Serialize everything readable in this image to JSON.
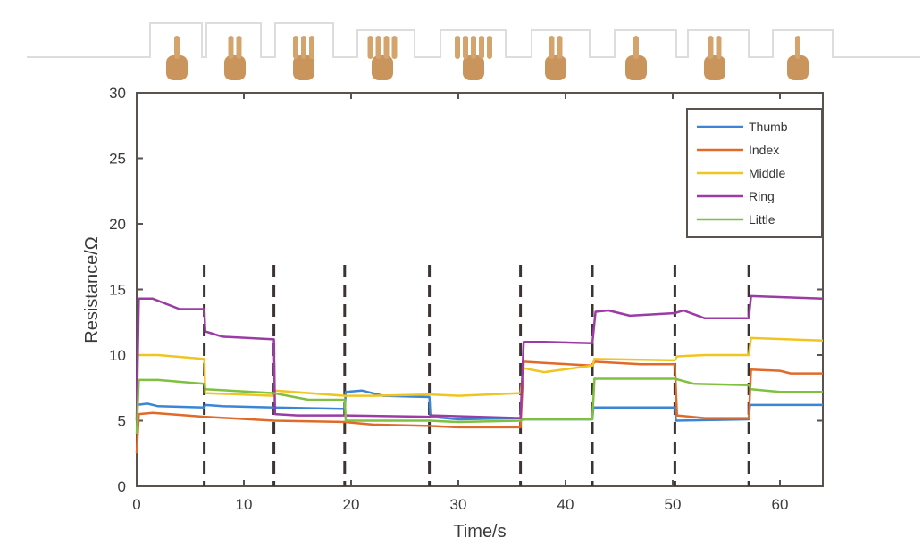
{
  "chart_data": {
    "type": "line",
    "title": "",
    "xlabel": "Time/s",
    "ylabel": "Resistance/Ω",
    "xlim": [
      0,
      64
    ],
    "ylim": [
      0,
      30
    ],
    "xticks": [
      0,
      10,
      20,
      30,
      40,
      50,
      60
    ],
    "yticks": [
      0,
      5,
      10,
      15,
      20,
      25,
      30
    ],
    "grid": false,
    "legend_position": "upper right",
    "gesture_boundaries": [
      6.3,
      12.8,
      19.4,
      27.3,
      35.8,
      42.5,
      50.2,
      57.1
    ],
    "gestures": [
      "one",
      "two",
      "three",
      "four",
      "five",
      "six (shaka)",
      "seven",
      "eight",
      "nine"
    ],
    "series": [
      {
        "name": "Thumb",
        "color": "#3b86d4",
        "points": [
          [
            0,
            6.2
          ],
          [
            1,
            6.3
          ],
          [
            2,
            6.1
          ],
          [
            6.3,
            6.0
          ],
          [
            6.4,
            6.2
          ],
          [
            8,
            6.1
          ],
          [
            12.8,
            6.0
          ],
          [
            19.4,
            5.9
          ],
          [
            19.5,
            7.2
          ],
          [
            21,
            7.3
          ],
          [
            23,
            6.9
          ],
          [
            27.3,
            6.8
          ],
          [
            27.4,
            5.3
          ],
          [
            30,
            5.1
          ],
          [
            35.8,
            5.2
          ],
          [
            35.9,
            5.1
          ],
          [
            42.5,
            5.1
          ],
          [
            42.6,
            6.0
          ],
          [
            50.2,
            6.0
          ],
          [
            50.3,
            5.0
          ],
          [
            57.1,
            5.1
          ],
          [
            57.2,
            6.2
          ],
          [
            64,
            6.2
          ]
        ]
      },
      {
        "name": "Index",
        "color": "#e06a2a",
        "points": [
          [
            0,
            2.5
          ],
          [
            0.2,
            5.5
          ],
          [
            1.5,
            5.6
          ],
          [
            6.3,
            5.3
          ],
          [
            12.8,
            5.0
          ],
          [
            19.4,
            4.9
          ],
          [
            22,
            4.7
          ],
          [
            27.3,
            4.6
          ],
          [
            30,
            4.5
          ],
          [
            35.8,
            4.5
          ],
          [
            36.1,
            9.5
          ],
          [
            38,
            9.4
          ],
          [
            42.5,
            9.2
          ],
          [
            42.7,
            9.5
          ],
          [
            47,
            9.3
          ],
          [
            50.2,
            9.3
          ],
          [
            50.4,
            5.4
          ],
          [
            53,
            5.2
          ],
          [
            57.1,
            5.2
          ],
          [
            57.3,
            8.9
          ],
          [
            60,
            8.8
          ],
          [
            61,
            8.6
          ],
          [
            64,
            8.6
          ]
        ]
      },
      {
        "name": "Middle",
        "color": "#f0c520",
        "points": [
          [
            0,
            10.0
          ],
          [
            2,
            10.0
          ],
          [
            6.3,
            9.7
          ],
          [
            6.4,
            7.1
          ],
          [
            12.8,
            6.9
          ],
          [
            12.9,
            7.3
          ],
          [
            19.4,
            6.9
          ],
          [
            22,
            6.9
          ],
          [
            27.3,
            7.0
          ],
          [
            30,
            6.9
          ],
          [
            35.8,
            7.1
          ],
          [
            36.1,
            9.0
          ],
          [
            38,
            8.7
          ],
          [
            42.5,
            9.2
          ],
          [
            42.7,
            9.7
          ],
          [
            50.2,
            9.6
          ],
          [
            50.4,
            9.9
          ],
          [
            53,
            10.0
          ],
          [
            57.1,
            10.0
          ],
          [
            57.3,
            11.3
          ],
          [
            64,
            11.1
          ]
        ]
      },
      {
        "name": "Ring",
        "color": "#9b3ba6",
        "points": [
          [
            0,
            5.0
          ],
          [
            0.2,
            14.3
          ],
          [
            1.5,
            14.3
          ],
          [
            4,
            13.5
          ],
          [
            6.3,
            13.5
          ],
          [
            6.4,
            11.8
          ],
          [
            8,
            11.4
          ],
          [
            12.8,
            11.2
          ],
          [
            12.9,
            5.5
          ],
          [
            15,
            5.4
          ],
          [
            19.4,
            5.4
          ],
          [
            19.5,
            5.4
          ],
          [
            27.3,
            5.3
          ],
          [
            27.4,
            5.4
          ],
          [
            35.8,
            5.2
          ],
          [
            36.1,
            11.0
          ],
          [
            38,
            11.0
          ],
          [
            42.5,
            10.9
          ],
          [
            42.8,
            13.3
          ],
          [
            44,
            13.4
          ],
          [
            46,
            13.0
          ],
          [
            50.2,
            13.2
          ],
          [
            51,
            13.4
          ],
          [
            53,
            12.8
          ],
          [
            57.1,
            12.8
          ],
          [
            57.3,
            14.5
          ],
          [
            64,
            14.3
          ]
        ]
      },
      {
        "name": "Little",
        "color": "#7fc040",
        "points": [
          [
            0,
            4.0
          ],
          [
            0.2,
            8.1
          ],
          [
            2,
            8.1
          ],
          [
            6.3,
            7.8
          ],
          [
            6.4,
            7.4
          ],
          [
            12.8,
            7.1
          ],
          [
            16,
            6.6
          ],
          [
            19.4,
            6.6
          ],
          [
            19.5,
            5.0
          ],
          [
            27.3,
            5.0
          ],
          [
            30,
            4.9
          ],
          [
            35.8,
            5.0
          ],
          [
            36.1,
            5.1
          ],
          [
            42.5,
            5.1
          ],
          [
            42.7,
            8.2
          ],
          [
            50.2,
            8.2
          ],
          [
            52,
            7.8
          ],
          [
            57.1,
            7.7
          ],
          [
            57.3,
            7.4
          ],
          [
            60,
            7.2
          ],
          [
            64,
            7.2
          ]
        ]
      }
    ]
  }
}
